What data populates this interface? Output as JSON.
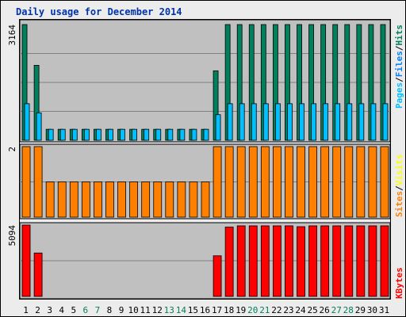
{
  "chart_data": {
    "type": "bar",
    "title": "Daily usage for December 2014",
    "categories": [
      "1",
      "2",
      "3",
      "4",
      "5",
      "6",
      "7",
      "8",
      "9",
      "10",
      "11",
      "12",
      "13",
      "14",
      "15",
      "16",
      "17",
      "18",
      "19",
      "20",
      "21",
      "22",
      "23",
      "24",
      "25",
      "26",
      "27",
      "28",
      "29",
      "30",
      "31"
    ],
    "weekend_days": [
      "6",
      "7",
      "13",
      "14",
      "20",
      "21",
      "27",
      "28"
    ],
    "panels": [
      {
        "name": "hits-files-pages",
        "scale_label": "3164",
        "ylim": [
          0,
          3164
        ],
        "legend": [
          "Pages",
          "Files",
          "Hits"
        ],
        "series": [
          {
            "name": "Hits",
            "color": "#00805c",
            "values": [
              3164,
              2050,
              300,
              300,
              300,
              300,
              300,
              300,
              300,
              300,
              300,
              300,
              300,
              300,
              300,
              300,
              1900,
              3164,
              3164,
              3164,
              3164,
              3164,
              3164,
              3164,
              3164,
              3164,
              3164,
              3164,
              3164,
              3164,
              3164
            ]
          },
          {
            "name": "Files",
            "color": "#00c0ff",
            "values": [
              1000,
              750,
              300,
              300,
              300,
              300,
              300,
              300,
              300,
              300,
              300,
              300,
              300,
              300,
              300,
              300,
              700,
              1000,
              1000,
              1000,
              1000,
              1000,
              1000,
              1000,
              1000,
              1000,
              1000,
              1000,
              1000,
              1000,
              1000
            ]
          },
          {
            "name": "Pages",
            "color": "#00e0ff",
            "values": [
              0,
              0,
              0,
              0,
              0,
              0,
              0,
              0,
              0,
              0,
              0,
              0,
              0,
              0,
              0,
              0,
              0,
              0,
              0,
              0,
              0,
              0,
              0,
              0,
              0,
              0,
              0,
              0,
              0,
              0,
              0
            ]
          }
        ]
      },
      {
        "name": "visits-sites",
        "scale_label": "2",
        "ylim": [
          0,
          2
        ],
        "legend": [
          "Sites",
          "Visits"
        ],
        "series": [
          {
            "name": "Visits",
            "color": "#ffff00",
            "values": [
              2,
              2,
              1,
              1,
              1,
              1,
              1,
              1,
              1,
              1,
              1,
              1,
              1,
              1,
              1,
              1,
              2,
              2,
              2,
              2,
              2,
              2,
              2,
              2,
              2,
              2,
              2,
              2,
              2,
              2,
              2
            ]
          },
          {
            "name": "Sites",
            "color": "#ff8000",
            "values": [
              2,
              2,
              1,
              1,
              1,
              1,
              1,
              1,
              1,
              1,
              1,
              1,
              1,
              1,
              1,
              1,
              2,
              2,
              2,
              2,
              2,
              2,
              2,
              2,
              2,
              2,
              2,
              2,
              2,
              2,
              2
            ]
          }
        ]
      },
      {
        "name": "kbytes",
        "scale_label": "5094",
        "ylim": [
          0,
          5094
        ],
        "legend": [
          "KBytes"
        ],
        "series": [
          {
            "name": "KBytes",
            "color": "#ff0000",
            "values": [
              5094,
              3100,
              0,
              0,
              0,
              0,
              0,
              0,
              0,
              0,
              0,
              0,
              0,
              0,
              0,
              0,
              2900,
              4950,
              5040,
              5040,
              5040,
              5040,
              5040,
              4980,
              5040,
              5040,
              5040,
              5040,
              5040,
              5040,
              5040
            ]
          }
        ]
      }
    ],
    "colors": {
      "plot_bg": "#c0c0c0",
      "grid": "#808080",
      "weekday_label": "#000000",
      "weekend_label": "#00805c",
      "Hits": "#00805c",
      "Files": "#0080ff",
      "Pages": "#00c0ff",
      "Visits": "#ffff00",
      "Sites": "#ff8000",
      "KBytes": "#ff0000"
    }
  }
}
